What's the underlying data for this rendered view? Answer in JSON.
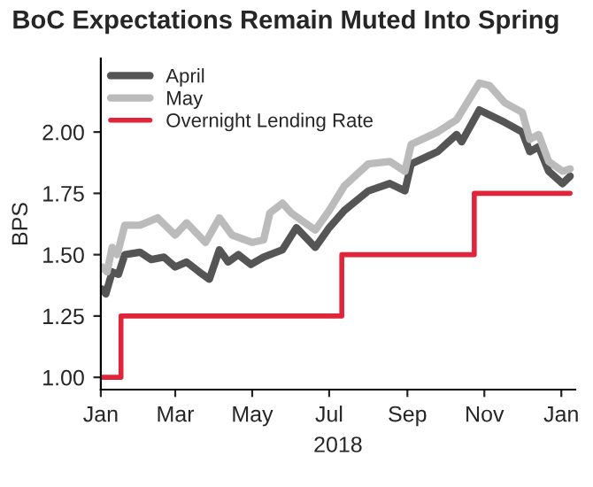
{
  "chart_data": {
    "type": "line",
    "title": "BoC Expectations Remain Muted Into Spring",
    "xlabel": "2018",
    "ylabel": "BPS",
    "ylim": [
      0.95,
      2.3
    ],
    "yticks": [
      {
        "value": 1.0,
        "label": "1.00"
      },
      {
        "value": 1.25,
        "label": "1.25"
      },
      {
        "value": 1.5,
        "label": "1.50"
      },
      {
        "value": 1.75,
        "label": "1.75"
      },
      {
        "value": 2.0,
        "label": "2.00"
      }
    ],
    "xlim": [
      "2018-01-01",
      "2019-01-12"
    ],
    "xticks": [
      {
        "value": "2018-01-01",
        "label": "Jan"
      },
      {
        "value": "2018-03-01",
        "label": "Mar"
      },
      {
        "value": "2018-05-01",
        "label": "May"
      },
      {
        "value": "2018-07-01",
        "label": "Jul"
      },
      {
        "value": "2018-09-01",
        "label": "Sep"
      },
      {
        "value": "2018-11-01",
        "label": "Nov"
      },
      {
        "value": "2019-01-01",
        "label": "Jan"
      }
    ],
    "grid": false,
    "legend": "top left",
    "series": [
      {
        "name": "April",
        "color": "#555555",
        "x": [
          "2018-01-02",
          "2018-01-05",
          "2018-01-10",
          "2018-01-15",
          "2018-01-20",
          "2018-02-01",
          "2018-02-10",
          "2018-02-20",
          "2018-03-01",
          "2018-03-10",
          "2018-03-20",
          "2018-03-28",
          "2018-04-05",
          "2018-04-12",
          "2018-04-20",
          "2018-04-30",
          "2018-05-10",
          "2018-05-25",
          "2018-06-05",
          "2018-06-20",
          "2018-07-01",
          "2018-07-13",
          "2018-08-01",
          "2018-08-18",
          "2018-08-30",
          "2018-09-04",
          "2018-09-25",
          "2018-10-10",
          "2018-10-14",
          "2018-10-28",
          "2018-11-05",
          "2018-11-17",
          "2018-12-01",
          "2018-12-07",
          "2018-12-14",
          "2018-12-22",
          "2019-01-02",
          "2019-01-08"
        ],
        "values": [
          1.36,
          1.34,
          1.43,
          1.42,
          1.5,
          1.51,
          1.48,
          1.49,
          1.45,
          1.47,
          1.43,
          1.4,
          1.52,
          1.47,
          1.5,
          1.46,
          1.49,
          1.52,
          1.61,
          1.53,
          1.61,
          1.68,
          1.76,
          1.79,
          1.76,
          1.87,
          1.92,
          1.99,
          1.96,
          2.09,
          2.07,
          2.04,
          2.0,
          1.92,
          1.94,
          1.84,
          1.79,
          1.82
        ]
      },
      {
        "name": "May",
        "color": "#bbbbbb",
        "x": [
          "2018-01-02",
          "2018-01-06",
          "2018-01-10",
          "2018-01-14",
          "2018-01-20",
          "2018-02-01",
          "2018-02-15",
          "2018-03-01",
          "2018-03-10",
          "2018-03-25",
          "2018-04-05",
          "2018-04-15",
          "2018-05-01",
          "2018-05-10",
          "2018-05-15",
          "2018-05-25",
          "2018-06-01",
          "2018-06-20",
          "2018-07-01",
          "2018-07-13",
          "2018-08-01",
          "2018-08-18",
          "2018-08-30",
          "2018-09-04",
          "2018-09-25",
          "2018-10-10",
          "2018-10-28",
          "2018-11-05",
          "2018-11-17",
          "2018-12-01",
          "2018-12-07",
          "2018-12-14",
          "2018-12-22",
          "2019-01-02",
          "2019-01-08"
        ],
        "values": [
          1.45,
          1.43,
          1.53,
          1.5,
          1.62,
          1.62,
          1.65,
          1.58,
          1.63,
          1.55,
          1.65,
          1.58,
          1.55,
          1.56,
          1.67,
          1.71,
          1.67,
          1.6,
          1.68,
          1.78,
          1.87,
          1.88,
          1.84,
          1.95,
          2.0,
          2.05,
          2.2,
          2.19,
          2.12,
          2.08,
          1.97,
          1.99,
          1.88,
          1.84,
          1.85
        ]
      },
      {
        "name": "Overnight Lending Rate",
        "type": "step",
        "color": "#e0243a",
        "x": [
          "2018-01-02",
          "2018-01-17",
          "2018-07-11",
          "2018-10-24",
          "2019-01-08"
        ],
        "values": [
          1.0,
          1.25,
          1.5,
          1.75,
          1.75
        ]
      }
    ]
  }
}
